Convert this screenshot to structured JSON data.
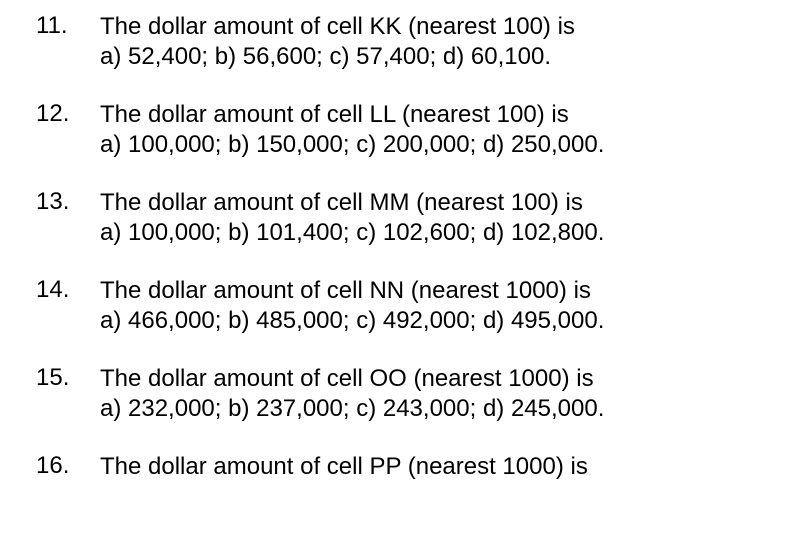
{
  "questions": [
    {
      "number": "11.",
      "prompt": "The dollar amount of cell KK (nearest 100) is",
      "choices": "a) 52,400; b) 56,600; c) 57,400; d) 60,100."
    },
    {
      "number": "12.",
      "prompt": "The dollar amount of cell LL (nearest 100) is",
      "choices": "a) 100,000; b) 150,000; c) 200,000; d) 250,000."
    },
    {
      "number": "13.",
      "prompt": "The dollar amount of cell MM (nearest 100) is",
      "choices": "a) 100,000; b) 101,400; c) 102,600; d) 102,800."
    },
    {
      "number": "14.",
      "prompt": "The dollar amount of cell NN (nearest 1000) is",
      "choices": "a) 466,000; b) 485,000; c) 492,000; d) 495,000."
    },
    {
      "number": "15.",
      "prompt": "The dollar amount of cell OO (nearest 1000) is",
      "choices": "a) 232,000; b) 237,000; c) 243,000; d) 245,000."
    },
    {
      "number": "16.",
      "prompt": "The dollar amount of cell PP (nearest 1000) is",
      "choices": ""
    }
  ]
}
